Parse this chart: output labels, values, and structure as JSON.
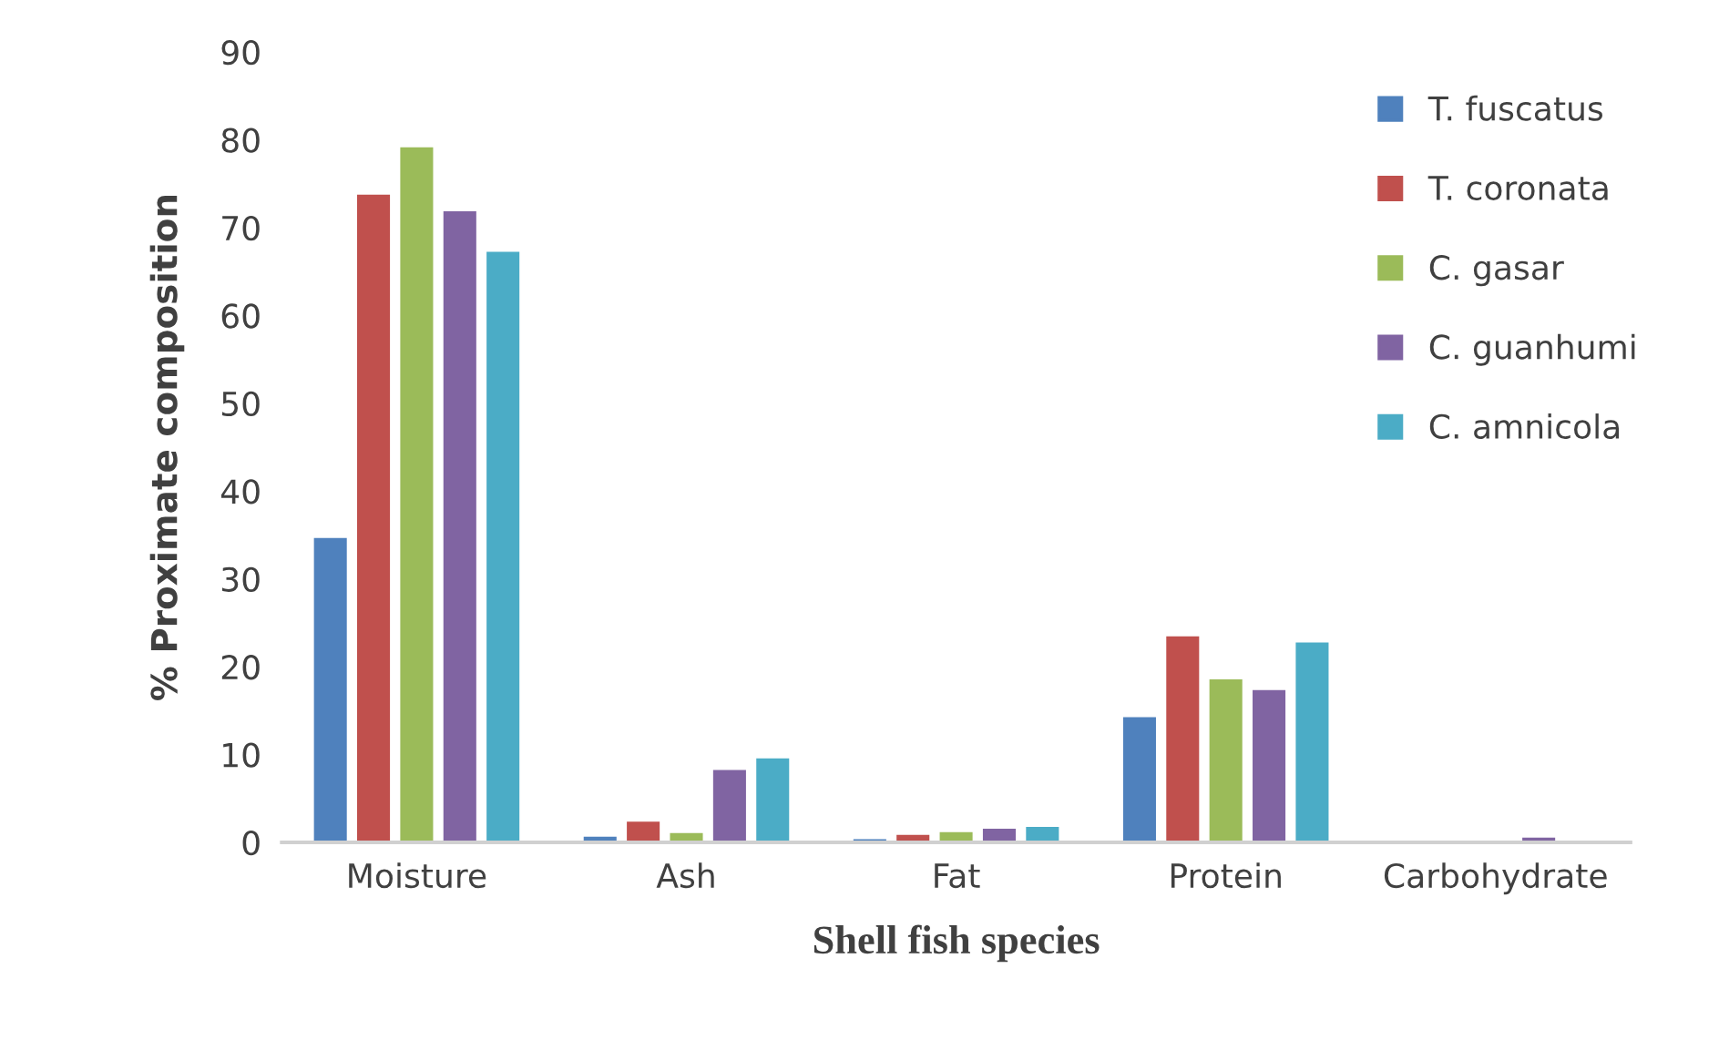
{
  "chart_data": {
    "type": "bar",
    "xlabel": "Shell fish species",
    "ylabel": "% Proximate composition",
    "categories": [
      "Moisture",
      "Ash",
      "Fat",
      "Protein",
      "Carbohydrate"
    ],
    "series": [
      {
        "name": "T. fuscatus",
        "color": "#4f81bd",
        "values": [
          34.8,
          0.8,
          0.5,
          14.4,
          null
        ]
      },
      {
        "name": "T. coronata",
        "color": "#c0504d",
        "values": [
          73.9,
          2.5,
          1.0,
          23.6,
          null
        ]
      },
      {
        "name": "C. gasar",
        "color": "#9bbb59",
        "values": [
          79.3,
          1.2,
          1.3,
          18.7,
          null
        ]
      },
      {
        "name": "C. guanhumi",
        "color": "#8064a2",
        "values": [
          72.0,
          8.4,
          1.7,
          17.5,
          0.7
        ]
      },
      {
        "name": "C. amnicola",
        "color": "#4bacc6",
        "values": [
          67.4,
          9.7,
          1.9,
          22.9,
          null
        ]
      }
    ],
    "ylim": [
      0,
      90
    ],
    "yticks": [
      0,
      10,
      20,
      30,
      40,
      50,
      60,
      70,
      80,
      90
    ],
    "grid": false,
    "legend": "top right"
  }
}
